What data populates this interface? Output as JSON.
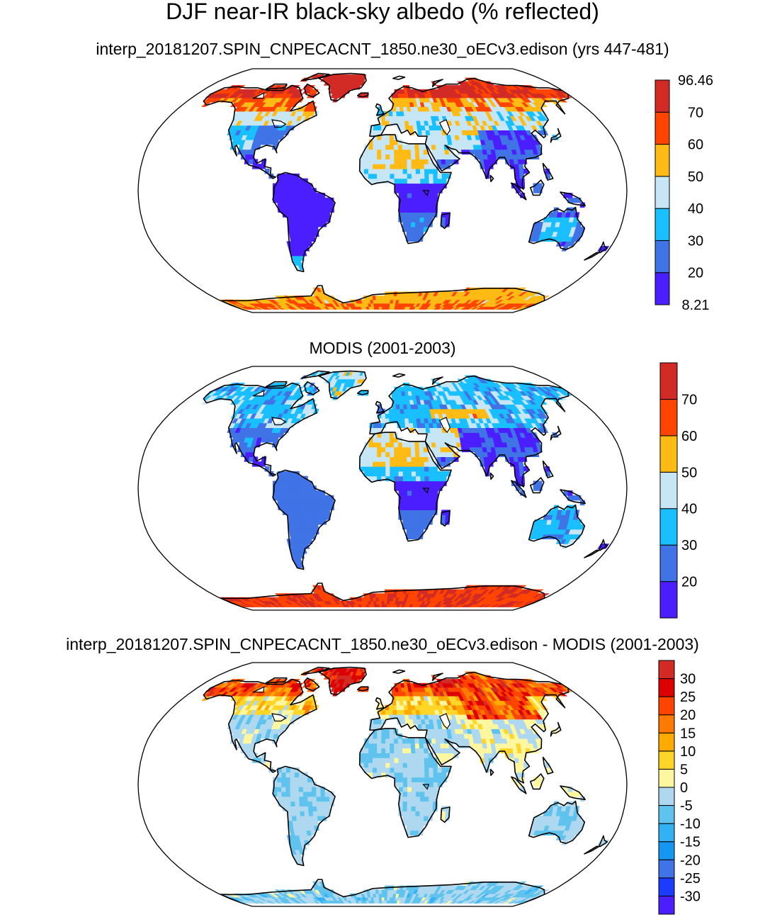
{
  "figure": {
    "title": "DJF near-IR black-sky albedo (% reflected)"
  },
  "chart_data": [
    {
      "type": "heatmap",
      "title": "interp_20181207.SPIN_CNPECACNT_1850.ne30_oECv3.edison (yrs 447-481)",
      "projection": "Robinson (global map)",
      "variable": "DJF near-IR black-sky albedo (% reflected)",
      "colorbar": {
        "min": 8.21,
        "max": 96.46,
        "levels": [
          20,
          30,
          40,
          50,
          60,
          70
        ],
        "colors": [
          "#4b1eff",
          "#3f73e6",
          "#19bfff",
          "#c7e6f5",
          "#ffbb15",
          "#ff4400",
          "#d22b26"
        ],
        "labels": [
          "96.46",
          "70",
          "60",
          "50",
          "40",
          "30",
          "20",
          "8.21"
        ]
      }
    },
    {
      "type": "heatmap",
      "title": "MODIS (2001-2003)",
      "projection": "Robinson (global map)",
      "variable": "DJF near-IR black-sky albedo (% reflected)",
      "colorbar": {
        "levels": [
          20,
          30,
          40,
          50,
          60,
          70
        ],
        "colors": [
          "#4b1eff",
          "#3f73e6",
          "#19bfff",
          "#c7e6f5",
          "#ffbb15",
          "#ff4400",
          "#d22b26"
        ],
        "labels": [
          "70",
          "60",
          "50",
          "40",
          "30",
          "20"
        ]
      }
    },
    {
      "type": "heatmap",
      "title": "interp_20181207.SPIN_CNPECACNT_1850.ne30_oECv3.edison - MODIS (2001-2003)",
      "projection": "Robinson (global map)",
      "variable": "difference (model - MODIS)",
      "colorbar": {
        "levels": [
          -30,
          -25,
          -20,
          -15,
          -10,
          -5,
          0,
          5,
          10,
          15,
          20,
          25,
          30
        ],
        "colors": [
          "#4b1eff",
          "#1b3cff",
          "#3f73e6",
          "#1596f0",
          "#33b1f5",
          "#5fc3ee",
          "#aed8ef",
          "#fff7a0",
          "#ffd628",
          "#ffaa00",
          "#ff7a00",
          "#ff4400",
          "#dd0000",
          "#d22b26"
        ],
        "labels": [
          "30",
          "25",
          "20",
          "15",
          "10",
          "5",
          "0",
          "-5",
          "-10",
          "-15",
          "-20",
          "-25",
          "-30"
        ]
      }
    }
  ]
}
